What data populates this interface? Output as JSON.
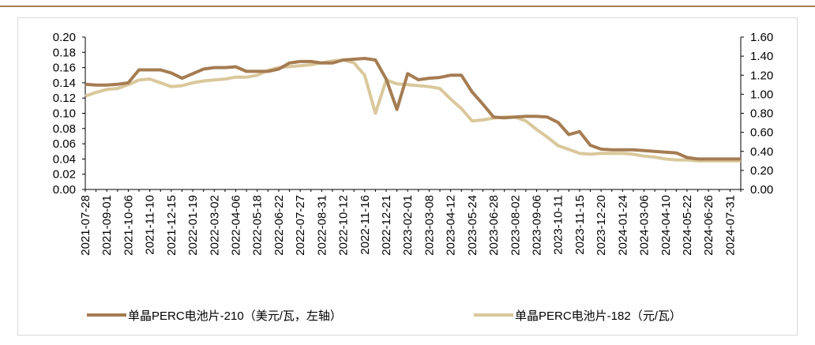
{
  "chart_data": {
    "type": "line",
    "categories": [
      "2021-07-28",
      null,
      "2021-09-01",
      null,
      "2021-10-06",
      null,
      "2021-11-10",
      null,
      "2021-12-15",
      null,
      "2022-01-19",
      null,
      "2022-03-02",
      null,
      "2022-04-06",
      null,
      "2022-05-18",
      null,
      "2022-06-22",
      null,
      "2022-07-27",
      null,
      "2022-08-31",
      null,
      "2022-10-12",
      null,
      "2022-11-16",
      null,
      "2022-12-21",
      null,
      "2023-02-01",
      null,
      "2023-03-08",
      null,
      "2023-04-12",
      null,
      "2023-05-24",
      null,
      "2023-06-28",
      null,
      "2023-08-02",
      null,
      "2023-09-06",
      null,
      "2023-10-11",
      null,
      "2023-11-15",
      null,
      "2023-12-20",
      null,
      "2024-01-24",
      null,
      "2024-03-06",
      null,
      "2024-04-10",
      null,
      "2024-05-22",
      null,
      "2024-06-26",
      null,
      "2024-07-31",
      null
    ],
    "series": [
      {
        "name": "单晶PERC电池片-210（美元/瓦，左轴）",
        "color": "#a57c52",
        "values": [
          0.138,
          0.137,
          0.137,
          0.138,
          0.14,
          0.157,
          0.157,
          0.157,
          0.153,
          0.146,
          0.152,
          0.158,
          0.16,
          0.16,
          0.161,
          0.155,
          0.155,
          0.155,
          0.158,
          0.166,
          0.168,
          0.168,
          0.166,
          0.166,
          0.17,
          0.171,
          0.172,
          0.17,
          0.145,
          0.105,
          0.152,
          0.144,
          0.146,
          0.147,
          0.15,
          0.15,
          0.128,
          0.112,
          0.095,
          0.094,
          0.095,
          0.096,
          0.096,
          0.095,
          0.088,
          0.072,
          0.076,
          0.058,
          0.053,
          0.052,
          0.052,
          0.052,
          0.051,
          0.05,
          0.049,
          0.048,
          0.042,
          0.04,
          0.04,
          0.04,
          0.04,
          0.04
        ]
      },
      {
        "name": "单晶PERC电池片-182（元/瓦）",
        "color": "#d9c89b",
        "axis": "y2",
        "values": [
          0.98,
          1.02,
          1.05,
          1.06,
          1.1,
          1.15,
          1.16,
          1.12,
          1.08,
          1.09,
          1.12,
          1.14,
          1.15,
          1.16,
          1.18,
          1.18,
          1.2,
          1.25,
          1.28,
          1.29,
          1.3,
          1.31,
          1.33,
          1.35,
          1.36,
          1.33,
          1.2,
          0.8,
          1.15,
          1.11,
          1.1,
          1.09,
          1.08,
          1.06,
          0.95,
          0.85,
          0.72,
          0.73,
          0.75,
          0.76,
          0.76,
          0.72,
          0.63,
          0.55,
          0.46,
          0.42,
          0.38,
          0.37,
          0.38,
          0.38,
          0.38,
          0.37,
          0.35,
          0.34,
          0.32,
          0.31,
          0.31,
          0.3,
          0.3,
          0.3,
          0.3,
          0.3
        ]
      }
    ],
    "ylim": [
      0,
      0.2
    ],
    "yticks": [
      {
        "value": 0,
        "label": "0.00"
      },
      {
        "value": 0.02,
        "label": "0.02"
      },
      {
        "value": 0.04,
        "label": "0.04"
      },
      {
        "value": 0.06,
        "label": "0.06"
      },
      {
        "value": 0.08,
        "label": "0.08"
      },
      {
        "value": 0.1,
        "label": "0.10"
      },
      {
        "value": 0.12,
        "label": "0.12"
      },
      {
        "value": 0.14,
        "label": "0.14"
      },
      {
        "value": 0.16,
        "label": "0.16"
      },
      {
        "value": 0.18,
        "label": "0.18"
      },
      {
        "value": 0.2,
        "label": "0.20"
      }
    ],
    "y2lim": [
      0,
      1.6
    ],
    "y2ticks": [
      {
        "value": 0,
        "label": "0.00"
      },
      {
        "value": 0.2,
        "label": "0.20"
      },
      {
        "value": 0.4,
        "label": "0.40"
      },
      {
        "value": 0.6,
        "label": "0.60"
      },
      {
        "value": 0.8,
        "label": "0.80"
      },
      {
        "value": 1.0,
        "label": "1.00"
      },
      {
        "value": 1.2,
        "label": "1.20"
      },
      {
        "value": 1.4,
        "label": "1.40"
      },
      {
        "value": 1.6,
        "label": "1.60"
      }
    ],
    "grid": false,
    "legend": "bottom"
  }
}
